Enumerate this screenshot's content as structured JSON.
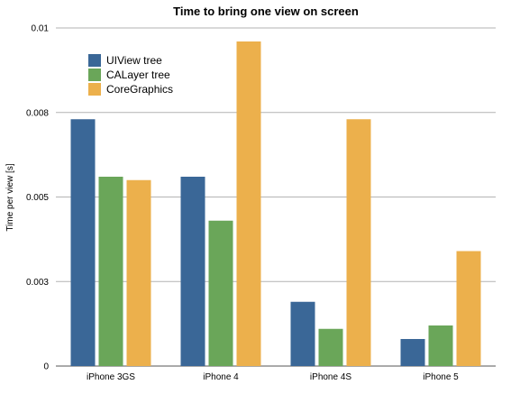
{
  "chart_data": {
    "type": "bar",
    "title": "Time to bring one view on screen",
    "xlabel": "",
    "ylabel": "Time per view [s]",
    "ylim": [
      0,
      0.01
    ],
    "yticks": [
      0,
      0.0025,
      0.005,
      0.0075,
      0.01
    ],
    "ytick_labels": [
      "0",
      "0.003",
      "0.005",
      "0.008",
      "0.01"
    ],
    "grid": true,
    "legend": "top-left",
    "categories": [
      "iPhone 3GS",
      "iPhone 4",
      "iPhone 4S",
      "iPhone 5"
    ],
    "series": [
      {
        "name": "UIView tree",
        "color": "#3a6797",
        "values": [
          0.0073,
          0.0056,
          0.0019,
          0.0008
        ]
      },
      {
        "name": "CALayer tree",
        "color": "#6aa659",
        "values": [
          0.0056,
          0.0043,
          0.0011,
          0.0012
        ]
      },
      {
        "name": "CoreGraphics",
        "color": "#ecb04c",
        "values": [
          0.0055,
          0.0096,
          0.0073,
          0.0034
        ]
      }
    ]
  }
}
